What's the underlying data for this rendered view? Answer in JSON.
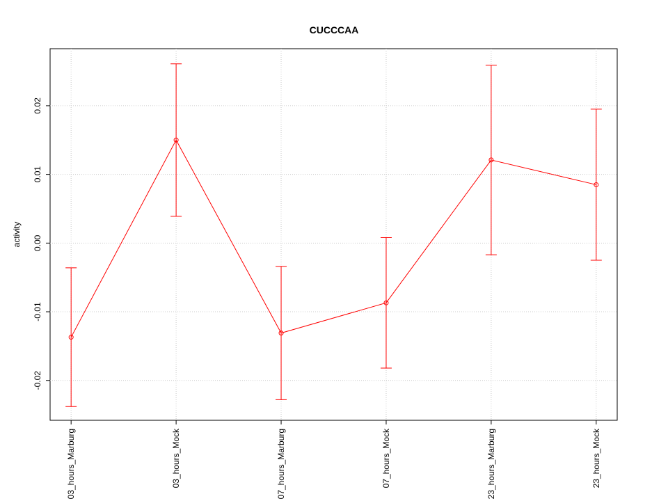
{
  "chart_data": {
    "type": "line",
    "title": "CUCCCAA",
    "y_label": "activity",
    "categories": [
      "03_hours_Marburg",
      "03_hours_Mock",
      "07_hours_Marburg",
      "07_hours_Mock",
      "23_hours_Marburg",
      "23_hours_Mock"
    ],
    "series": [
      {
        "color": "#ff0000",
        "values": [
          -0.0137,
          0.015,
          -0.0131,
          -0.0087,
          0.0121,
          0.0085
        ],
        "errors": [
          0.0101,
          0.0111,
          0.0097,
          0.0095,
          0.0138,
          0.011
        ]
      }
    ],
    "ylim": [
      -0.0258,
      0.0283
    ],
    "yticks": [
      {
        "value": -0.02,
        "label": "-0.02"
      },
      {
        "value": -0.01,
        "label": "-0.01"
      },
      {
        "value": 0,
        "label": "0.00"
      },
      {
        "value": 0.01,
        "label": "0.01"
      },
      {
        "value": 0.02,
        "label": "0.02"
      }
    ],
    "grid": true
  }
}
